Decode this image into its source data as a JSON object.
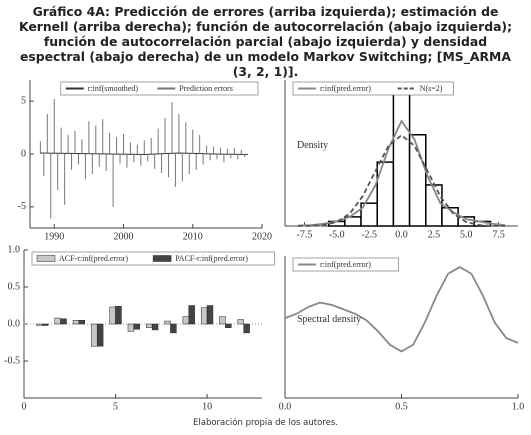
{
  "title": "Gráfico 4A: Predicción de errores (arriba izquierda); estimación de Kernell (arriba derecha); función de autocorrelación (abajo izquierda); función de autocorrelación parcial (abajo izquierda) y densidad espectral (abajo derecha) de un modelo Markov Switching; [MS_ARMA (3, 2, 1)].",
  "note": "Elaboración propia de los autores.",
  "chart_data": [
    {
      "type": "spike",
      "legend": "top-right",
      "x": [
        1988.0,
        1988.5,
        1989.0,
        1989.5,
        1990.0,
        1990.5,
        1991.0,
        1991.5,
        1992.0,
        1992.5,
        1993.0,
        1993.5,
        1994.0,
        1994.5,
        1995.0,
        1995.5,
        1996.0,
        1996.5,
        1997.0,
        1997.5,
        1998.0,
        1998.5,
        1999.0,
        1999.5,
        2000.0,
        2000.5,
        2001.0,
        2001.5,
        2002.0,
        2002.5,
        2003.0,
        2003.5,
        2004.0,
        2004.5,
        2005.0,
        2005.5,
        2006.0,
        2006.5,
        2007.0,
        2007.5,
        2008.0,
        2008.5,
        2009.0,
        2009.5,
        2010.0,
        2010.5,
        2011.0,
        2011.5,
        2012.0,
        2012.5,
        2013.0,
        2013.5,
        2014.0,
        2014.5,
        2015.0,
        2015.5,
        2016.0,
        2016.5,
        2017.0,
        2017.5
      ],
      "series": [
        {
          "name": "r:inf(smoothed)",
          "color": "#333333",
          "type": "line",
          "x": [
            1988,
            1993,
            1998,
            2003,
            2008,
            2013,
            2018
          ],
          "values": [
            0.1,
            0.05,
            0.0,
            -0.05,
            0.1,
            0.0,
            -0.05
          ]
        },
        {
          "name": "Prediction errors",
          "color": "#777777",
          "type": "spike",
          "values": [
            1.2,
            -2.1,
            3.8,
            -6.1,
            5.2,
            -3.4,
            2.5,
            -4.8,
            1.8,
            -1.5,
            2.2,
            -1.0,
            1.4,
            -2.4,
            3.1,
            -1.9,
            2.7,
            -1.2,
            3.3,
            -1.6,
            2.0,
            -5.0,
            1.6,
            -0.9,
            1.9,
            -1.3,
            1.1,
            -0.8,
            0.9,
            -1.1,
            1.3,
            -0.7,
            1.5,
            -1.4,
            2.4,
            -1.8,
            3.4,
            -2.2,
            4.9,
            -3.1,
            3.8,
            -2.6,
            3.0,
            -1.9,
            2.3,
            -1.5,
            1.8,
            -1.0,
            0.8,
            -0.6,
            0.7,
            -0.5,
            0.6,
            -0.8,
            0.5,
            -0.4,
            0.6,
            -0.5,
            0.4,
            -0.3
          ]
        }
      ],
      "xlim": [
        1986.5,
        2020
      ],
      "xticks": [
        1990,
        2000,
        2010,
        2020
      ],
      "ylim": [
        -7,
        7
      ],
      "yticks": [
        -5,
        0,
        5
      ]
    },
    {
      "type": "histogram",
      "legend": "top-left",
      "annotation": "Density",
      "bins": [
        -5.625,
        -4.375,
        -3.125,
        -1.875,
        -0.625,
        0.625,
        1.875,
        3.125,
        4.375,
        5.625,
        6.875
      ],
      "values": [
        0.01,
        0.02,
        0.05,
        0.14,
        0.29,
        0.2,
        0.09,
        0.04,
        0.02,
        0.01
      ],
      "color": "#000000",
      "series": [
        {
          "name": "r:inf(pred.error)",
          "color": "#888888",
          "type": "line",
          "x": [
            -8,
            -7,
            -6,
            -5,
            -4,
            -3,
            -2,
            -1,
            0,
            1,
            2,
            3,
            4,
            5,
            6,
            7,
            8
          ],
          "values": [
            0.001,
            0.002,
            0.005,
            0.01,
            0.02,
            0.04,
            0.09,
            0.17,
            0.23,
            0.19,
            0.11,
            0.05,
            0.03,
            0.015,
            0.01,
            0.005,
            0.002
          ]
        },
        {
          "name": "N(s=2)",
          "color": "#555555",
          "type": "line",
          "dash": true,
          "x": [
            -8,
            -7,
            -6,
            -5,
            -4,
            -3,
            -2,
            -1,
            0,
            1,
            2,
            3,
            4,
            5,
            6,
            7,
            8
          ],
          "values": [
            7e-05,
            0.0004,
            0.0022,
            0.0088,
            0.027,
            0.065,
            0.121,
            0.176,
            0.199,
            0.176,
            0.121,
            0.065,
            0.027,
            0.0088,
            0.0022,
            0.0004,
            7e-05
          ]
        }
      ],
      "xlim": [
        -9,
        9
      ],
      "xticks": [
        -7.5,
        {
          "value": -5,
          "label": "-5.0"
        },
        -2.5,
        {
          "value": 0,
          "label": "0.0"
        },
        2.5,
        {
          "value": 5,
          "label": "5.0"
        },
        7.5
      ],
      "ylim": [
        0,
        0.32
      ]
    },
    {
      "type": "bar",
      "legend": "top-left",
      "x": [
        1,
        2,
        3,
        4,
        5,
        6,
        7,
        8,
        9,
        10,
        11,
        12
      ],
      "series": [
        {
          "name": "ACF-r:inf(pred.error)",
          "color": "#c8c8c8",
          "type": "bar",
          "values": [
            -0.02,
            0.08,
            0.05,
            -0.3,
            0.23,
            -0.1,
            -0.05,
            0.04,
            0.1,
            0.22,
            0.1,
            0.06
          ]
        },
        {
          "name": "PACF-r:inf(pred.error)",
          "color": "#444444",
          "type": "bar",
          "values": [
            -0.02,
            0.07,
            0.05,
            -0.3,
            0.24,
            -0.07,
            -0.08,
            -0.12,
            0.25,
            0.25,
            -0.05,
            -0.12
          ]
        }
      ],
      "xlim": [
        0,
        13
      ],
      "xticks": [
        0,
        5,
        10
      ],
      "ylim": [
        -1,
        1
      ],
      "yticks": [
        -0.5,
        {
          "value": 0,
          "label": "0.0"
        },
        0.5,
        {
          "value": 1,
          "label": "1.0"
        }
      ]
    },
    {
      "type": "line",
      "legend": "top-left",
      "annotation": "Spectral density",
      "x": [
        0,
        0.05,
        0.1,
        0.15,
        0.2,
        0.25,
        0.3,
        0.35,
        0.4,
        0.45,
        0.5,
        0.55,
        0.6,
        0.65,
        0.7,
        0.75,
        0.8,
        0.85,
        0.9,
        0.95,
        1.0
      ],
      "series": [
        {
          "name": "r:inf(pred.error)",
          "color": "#888888",
          "type": "line",
          "values": [
            0.18,
            0.19,
            0.205,
            0.215,
            0.21,
            0.2,
            0.19,
            0.175,
            0.15,
            0.12,
            0.105,
            0.12,
            0.17,
            0.23,
            0.28,
            0.295,
            0.28,
            0.23,
            0.17,
            0.135,
            0.124
          ]
        }
      ],
      "xlim": [
        0,
        1
      ],
      "xticks": [
        {
          "value": 0,
          "label": "0.0"
        },
        0.5,
        {
          "value": 1,
          "label": "1.0"
        }
      ],
      "ylim": [
        0,
        0.32
      ]
    }
  ]
}
